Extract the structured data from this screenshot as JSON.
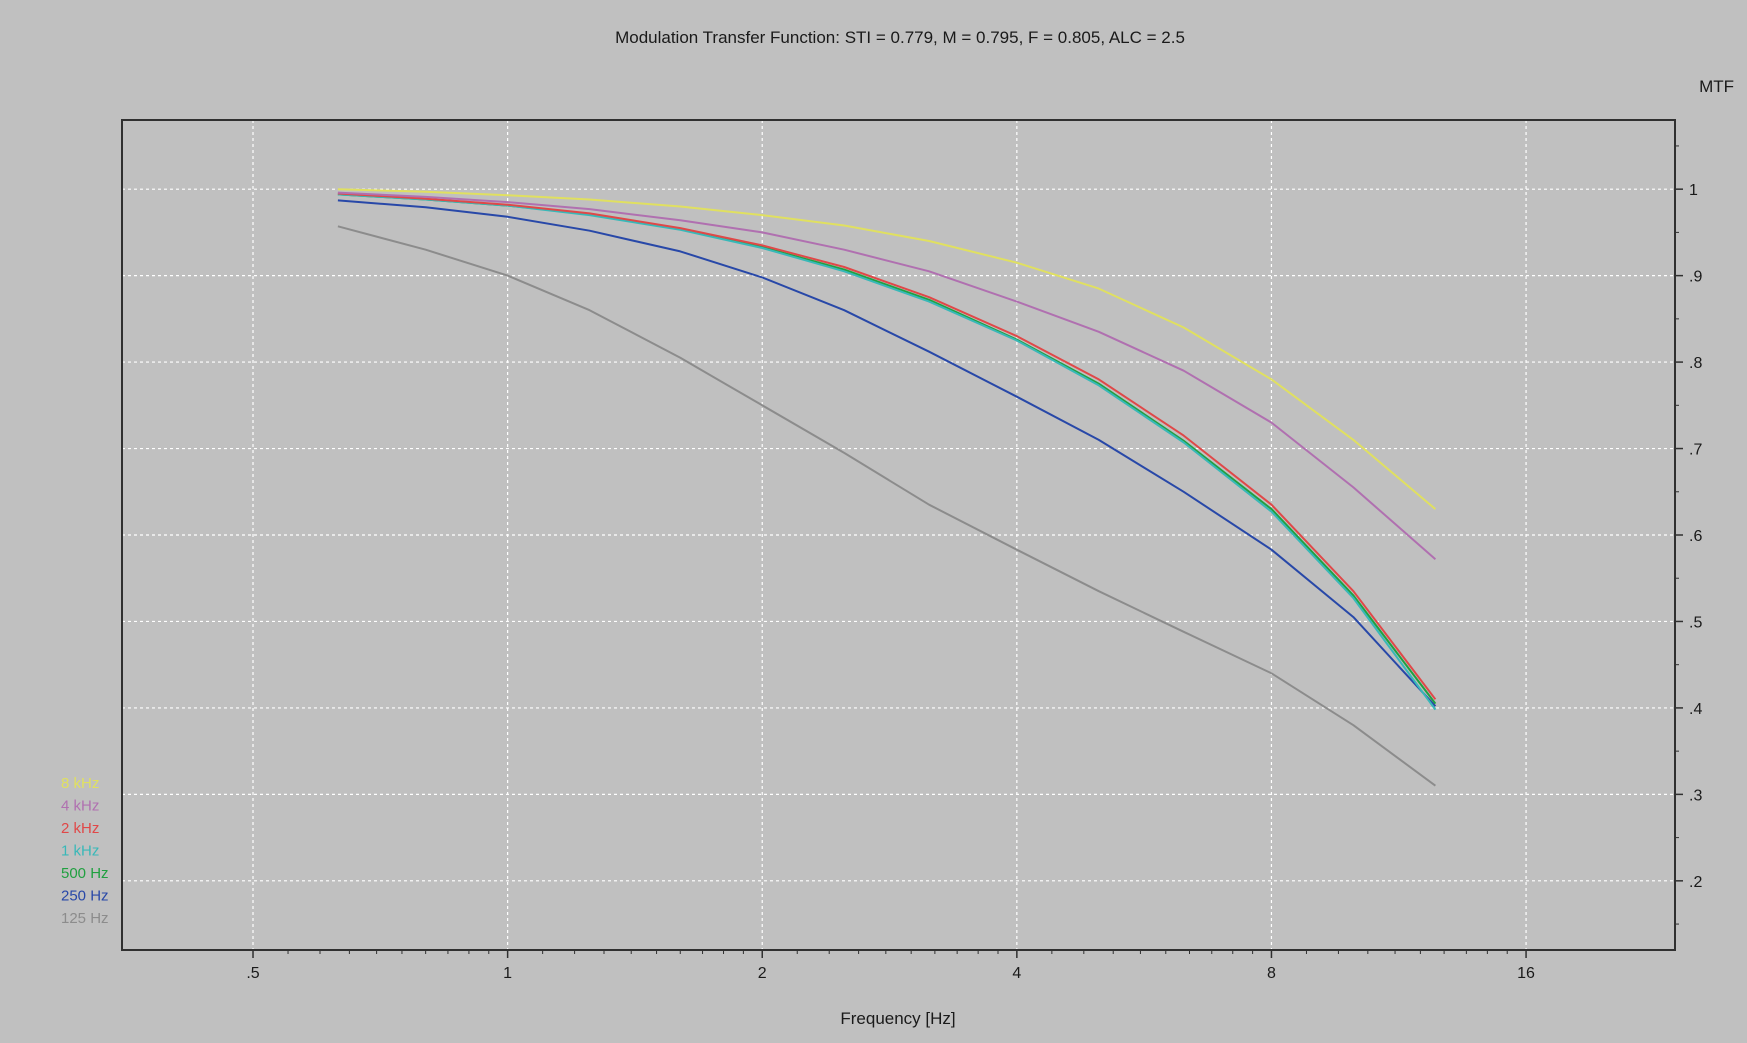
{
  "chart_data": {
    "type": "line",
    "title": "Modulation Transfer Function: STI = 0.779, M = 0.795, F = 0.805, ALC =   2.5",
    "xlabel": "Frequency [Hz]",
    "ylabel": "MTF",
    "x_scale": "log2",
    "xlim": [
      0.35,
      24
    ],
    "ylim": [
      0.12,
      1.08
    ],
    "grid": true,
    "legend_position": "bottom-left",
    "x_ticks": [
      {
        "value": 0.5,
        "label": ".5"
      },
      {
        "value": 1,
        "label": "1"
      },
      {
        "value": 2,
        "label": "2"
      },
      {
        "value": 4,
        "label": "4"
      },
      {
        "value": 8,
        "label": "8"
      },
      {
        "value": 16,
        "label": "16"
      }
    ],
    "y_ticks": [
      {
        "value": 1.0,
        "label": "1"
      },
      {
        "value": 0.9,
        "label": ".9"
      },
      {
        "value": 0.8,
        "label": ".8"
      },
      {
        "value": 0.7,
        "label": ".7"
      },
      {
        "value": 0.6,
        "label": ".6"
      },
      {
        "value": 0.5,
        "label": ".5"
      },
      {
        "value": 0.4,
        "label": ".4"
      },
      {
        "value": 0.3,
        "label": ".3"
      },
      {
        "value": 0.2,
        "label": ".2"
      }
    ],
    "x": [
      0.63,
      0.8,
      1.0,
      1.25,
      1.6,
      2.0,
      2.5,
      3.15,
      4.0,
      5.0,
      6.3,
      8.0,
      10.0,
      12.5
    ],
    "series": [
      {
        "name": "8 kHz",
        "color": "#e0e060",
        "values": [
          1.0,
          0.997,
          0.993,
          0.988,
          0.98,
          0.97,
          0.958,
          0.94,
          0.915,
          0.885,
          0.84,
          0.78,
          0.71,
          0.63
        ]
      },
      {
        "name": "4 kHz",
        "color": "#b070b0",
        "values": [
          0.996,
          0.991,
          0.985,
          0.977,
          0.964,
          0.95,
          0.93,
          0.905,
          0.87,
          0.835,
          0.79,
          0.73,
          0.655,
          0.572
        ]
      },
      {
        "name": "2 kHz",
        "color": "#e04848",
        "values": [
          0.995,
          0.989,
          0.982,
          0.972,
          0.955,
          0.935,
          0.91,
          0.875,
          0.83,
          0.78,
          0.715,
          0.635,
          0.535,
          0.41
        ]
      },
      {
        "name": "1 kHz",
        "color": "#38b8b8",
        "values": [
          0.994,
          0.988,
          0.981,
          0.97,
          0.953,
          0.932,
          0.905,
          0.87,
          0.825,
          0.773,
          0.707,
          0.627,
          0.527,
          0.398
        ]
      },
      {
        "name": "500 Hz",
        "color": "#20a040",
        "values": [
          0.994,
          0.988,
          0.981,
          0.971,
          0.954,
          0.933,
          0.907,
          0.872,
          0.826,
          0.775,
          0.709,
          0.63,
          0.53,
          0.405
        ]
      },
      {
        "name": "250 Hz",
        "color": "#2848a8",
        "values": [
          0.987,
          0.979,
          0.968,
          0.952,
          0.928,
          0.898,
          0.86,
          0.812,
          0.76,
          0.71,
          0.65,
          0.583,
          0.505,
          0.402
        ]
      },
      {
        "name": "125 Hz",
        "color": "#8c8c8c",
        "values": [
          0.957,
          0.93,
          0.9,
          0.86,
          0.805,
          0.75,
          0.695,
          0.635,
          0.583,
          0.535,
          0.488,
          0.44,
          0.38,
          0.31
        ]
      }
    ]
  },
  "colors": {
    "background": "#c0c0c0",
    "plot_border": "#303030",
    "grid": "#ffffff",
    "text": "#1a1a1a"
  }
}
